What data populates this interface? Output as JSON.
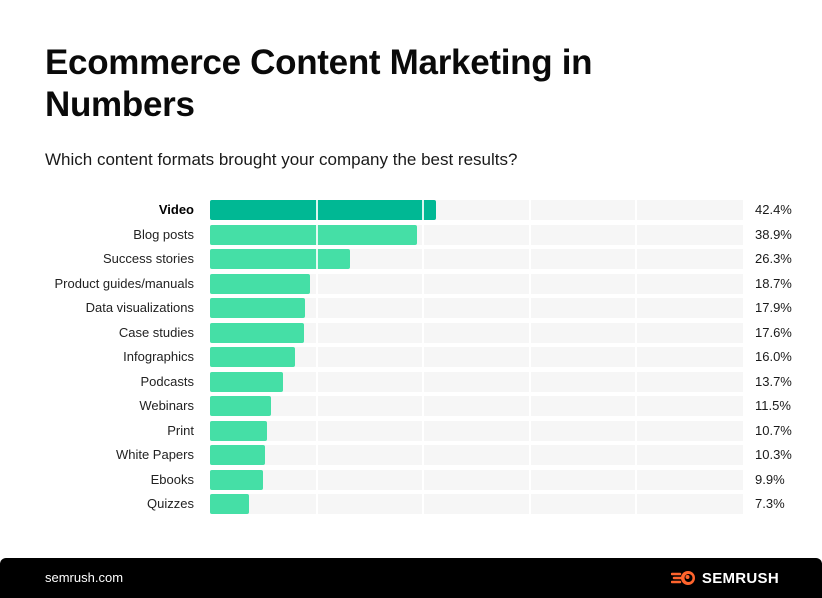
{
  "header": {
    "title": "Ecommerce Content Marketing in Numbers",
    "subtitle": "Which content formats brought your company the best results?"
  },
  "footer": {
    "site": "semrush.com",
    "brand": "SEMRUSH",
    "brand_icon": "semrush-fireball-icon",
    "brand_color": "#ff642d"
  },
  "colors": {
    "top_bar": "#00b894",
    "bar": "#45dfa6",
    "track": "#f6f6f6",
    "footer_bg": "#000000"
  },
  "chart_data": {
    "type": "bar",
    "orientation": "horizontal",
    "title": "Ecommerce Content Marketing in Numbers",
    "subtitle": "Which content formats brought your company the best results?",
    "xlabel": "",
    "ylabel": "",
    "xlim": [
      0,
      100
    ],
    "grid": true,
    "grid_interval": 20,
    "legend": null,
    "categories": [
      "Video",
      "Blog posts",
      "Success stories",
      "Product guides/manuals",
      "Data visualizations",
      "Case studies",
      "Infographics",
      "Podcasts",
      "Webinars",
      "Print",
      "White Papers",
      "Ebooks",
      "Quizzes"
    ],
    "values": [
      42.4,
      38.9,
      26.3,
      18.7,
      17.9,
      17.6,
      16.0,
      13.7,
      11.5,
      10.7,
      10.3,
      9.9,
      7.3
    ],
    "value_labels": [
      "42.4%",
      "38.9%",
      "26.3%",
      "18.7%",
      "17.9%",
      "17.6%",
      "16.0%",
      "13.7%",
      "11.5%",
      "10.7%",
      "10.3%",
      "9.9%",
      "7.3%"
    ],
    "highlighted": "Video",
    "unit": "%"
  }
}
